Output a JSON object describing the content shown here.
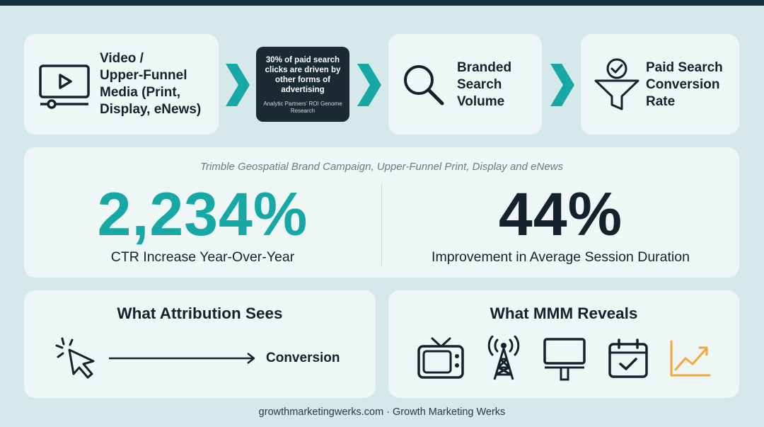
{
  "flow": {
    "step1": {
      "title_lines": [
        "Video /",
        "Upper-Funnel",
        "Media (Print,",
        "Display, eNews)"
      ],
      "icon": "video-monitor-icon"
    },
    "callout": {
      "main": "30% of paid search clicks are driven by other forms of advertising",
      "source": "Analytic Partners' ROI Genome Research"
    },
    "step2": {
      "title_lines": [
        "Branded",
        "Search",
        "Volume"
      ],
      "icon": "magnifier-icon"
    },
    "step3": {
      "title_lines": [
        "Paid Search",
        "Conversion",
        "Rate"
      ],
      "icon": "funnel-check-icon"
    },
    "arrow_icon": "chevron-right-icon"
  },
  "stats": {
    "caption": "Trimble Geospatial Brand Campaign, Upper-Funnel Print, Display and eNews",
    "left": {
      "value": "2,234%",
      "label": "CTR Increase Year-Over-Year"
    },
    "right": {
      "value": "44%",
      "label": "Improvement in Average Session Duration"
    }
  },
  "attribution": {
    "title": "What Attribution Sees",
    "icon": "click-cursor-icon",
    "target": "Conversion"
  },
  "mmm": {
    "title": "What MMM Reveals",
    "icons": [
      "tv-icon",
      "radio-tower-icon",
      "billboard-icon",
      "calendar-check-icon",
      "trend-up-icon"
    ]
  },
  "footer": "growthmarketingwerks.com · Growth Marketing Werks",
  "colors": {
    "teal": "#17a8a5",
    "navy": "#13222d",
    "orange": "#f2a93b",
    "background": "#d5e8ea",
    "card": "#eef6f6"
  }
}
